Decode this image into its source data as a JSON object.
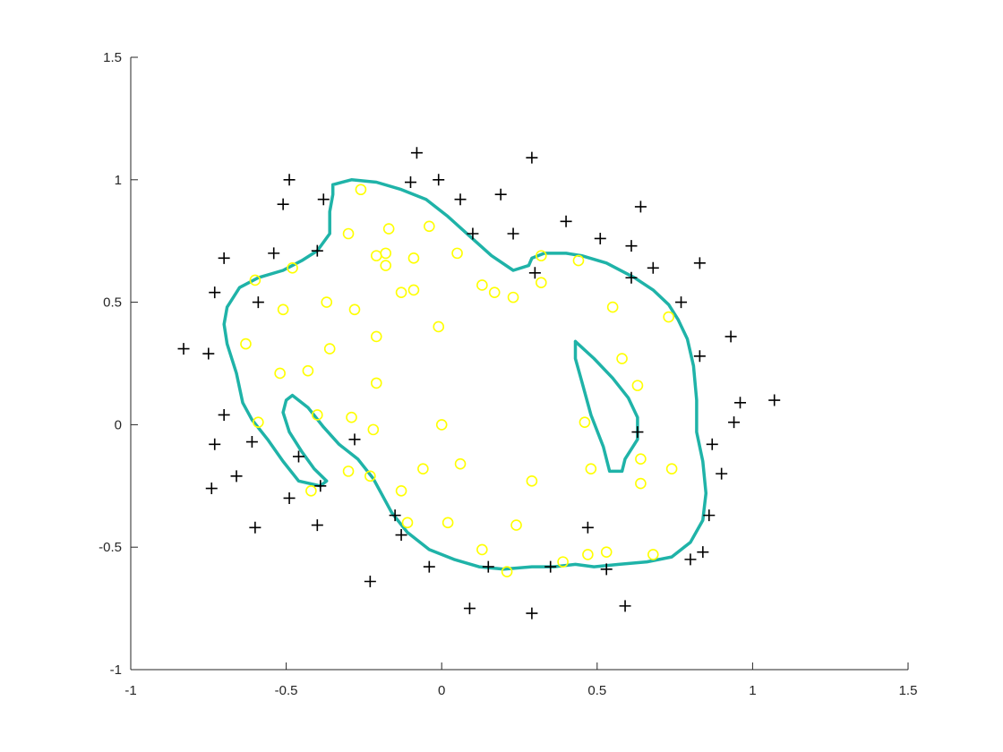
{
  "chart_data": {
    "type": "scatter",
    "xlim": [
      -1,
      1.5
    ],
    "ylim": [
      -1,
      1.5
    ],
    "x_ticks": [
      -1,
      -0.5,
      0,
      0.5,
      1,
      1.5
    ],
    "y_ticks": [
      -1,
      -0.5,
      0,
      0.5,
      1,
      1.5
    ],
    "x_tick_labels": [
      "-1",
      "-0.5",
      "0",
      "0.5",
      "1",
      "1.5"
    ],
    "y_tick_labels": [
      "-1",
      "-0.5",
      "0",
      "0.5",
      "1",
      "1.5"
    ],
    "grid": false,
    "box": false,
    "colors": {
      "positive": "#000000",
      "negative": "#ffff00",
      "boundary": "#1fb3a8",
      "axis": "#262626"
    },
    "series": [
      {
        "marker": "plus",
        "points": [
          [
            -0.83,
            0.31
          ],
          [
            -0.75,
            0.29
          ],
          [
            -0.73,
            0.54
          ],
          [
            -0.7,
            0.68
          ],
          [
            -0.7,
            0.04
          ],
          [
            -0.73,
            -0.08
          ],
          [
            -0.74,
            -0.26
          ],
          [
            -0.66,
            -0.21
          ],
          [
            -0.59,
            0.5
          ],
          [
            -0.61,
            -0.07
          ],
          [
            -0.6,
            -0.42
          ],
          [
            -0.54,
            0.7
          ],
          [
            -0.51,
            0.9
          ],
          [
            -0.49,
            1.0
          ],
          [
            -0.49,
            -0.3
          ],
          [
            -0.46,
            -0.13
          ],
          [
            -0.4,
            0.71
          ],
          [
            -0.38,
            0.92
          ],
          [
            -0.4,
            -0.41
          ],
          [
            -0.39,
            -0.25
          ],
          [
            -0.28,
            -0.06
          ],
          [
            -0.23,
            -0.64
          ],
          [
            -0.15,
            -0.37
          ],
          [
            -0.13,
            -0.45
          ],
          [
            -0.1,
            0.99
          ],
          [
            -0.08,
            1.11
          ],
          [
            -0.04,
            -0.58
          ],
          [
            -0.01,
            1.0
          ],
          [
            0.06,
            0.92
          ],
          [
            0.1,
            0.78
          ],
          [
            0.09,
            -0.75
          ],
          [
            0.15,
            -0.58
          ],
          [
            0.19,
            0.94
          ],
          [
            0.23,
            0.78
          ],
          [
            0.29,
            1.09
          ],
          [
            0.3,
            0.62
          ],
          [
            0.29,
            -0.77
          ],
          [
            0.35,
            -0.58
          ],
          [
            0.4,
            0.83
          ],
          [
            0.47,
            -0.42
          ],
          [
            0.51,
            0.76
          ],
          [
            0.53,
            -0.59
          ],
          [
            0.61,
            0.73
          ],
          [
            0.61,
            0.6
          ],
          [
            0.64,
            0.89
          ],
          [
            0.63,
            -0.03
          ],
          [
            0.59,
            -0.74
          ],
          [
            0.68,
            0.64
          ],
          [
            0.77,
            0.5
          ],
          [
            0.8,
            -0.55
          ],
          [
            0.83,
            0.66
          ],
          [
            0.83,
            0.28
          ],
          [
            0.84,
            -0.52
          ],
          [
            0.86,
            -0.37
          ],
          [
            0.87,
            -0.08
          ],
          [
            0.9,
            -0.2
          ],
          [
            0.93,
            0.36
          ],
          [
            0.94,
            0.01
          ],
          [
            0.96,
            0.09
          ],
          [
            1.07,
            0.1
          ]
        ]
      },
      {
        "marker": "circle",
        "points": [
          [
            -0.63,
            0.33
          ],
          [
            -0.6,
            0.59
          ],
          [
            -0.59,
            0.01
          ],
          [
            -0.52,
            0.21
          ],
          [
            -0.51,
            0.47
          ],
          [
            -0.48,
            0.64
          ],
          [
            -0.43,
            0.22
          ],
          [
            -0.42,
            -0.27
          ],
          [
            -0.4,
            0.04
          ],
          [
            -0.37,
            0.5
          ],
          [
            -0.36,
            0.31
          ],
          [
            -0.3,
            0.78
          ],
          [
            -0.29,
            0.03
          ],
          [
            -0.3,
            -0.19
          ],
          [
            -0.28,
            0.47
          ],
          [
            -0.26,
            0.96
          ],
          [
            -0.23,
            -0.21
          ],
          [
            -0.21,
            0.69
          ],
          [
            -0.21,
            0.36
          ],
          [
            -0.21,
            0.17
          ],
          [
            -0.22,
            -0.02
          ],
          [
            -0.17,
            0.8
          ],
          [
            -0.18,
            0.7
          ],
          [
            -0.18,
            0.65
          ],
          [
            -0.13,
            0.54
          ],
          [
            -0.13,
            -0.27
          ],
          [
            -0.11,
            -0.4
          ],
          [
            -0.09,
            0.68
          ],
          [
            -0.09,
            0.55
          ],
          [
            -0.06,
            -0.18
          ],
          [
            -0.04,
            0.81
          ],
          [
            -0.01,
            0.4
          ],
          [
            0.0,
            0.0
          ],
          [
            0.02,
            -0.4
          ],
          [
            0.05,
            0.7
          ],
          [
            0.06,
            -0.16
          ],
          [
            0.13,
            0.57
          ],
          [
            0.13,
            -0.51
          ],
          [
            0.17,
            0.54
          ],
          [
            0.21,
            -0.6
          ],
          [
            0.23,
            0.52
          ],
          [
            0.24,
            -0.41
          ],
          [
            0.29,
            -0.23
          ],
          [
            0.32,
            0.69
          ],
          [
            0.32,
            0.58
          ],
          [
            0.39,
            -0.56
          ],
          [
            0.44,
            0.67
          ],
          [
            0.46,
            0.01
          ],
          [
            0.48,
            -0.18
          ],
          [
            0.47,
            -0.53
          ],
          [
            0.53,
            -0.52
          ],
          [
            0.55,
            0.48
          ],
          [
            0.58,
            0.27
          ],
          [
            0.63,
            0.16
          ],
          [
            0.64,
            -0.14
          ],
          [
            0.64,
            -0.24
          ],
          [
            0.68,
            -0.53
          ],
          [
            0.73,
            0.44
          ],
          [
            0.74,
            -0.18
          ]
        ]
      }
    ],
    "decision_boundary": [
      [
        [
          -0.35,
          0.98
        ],
        [
          -0.29,
          1.0
        ],
        [
          -0.21,
          0.99
        ],
        [
          -0.13,
          0.96
        ],
        [
          -0.05,
          0.92
        ],
        [
          0.02,
          0.85
        ],
        [
          0.09,
          0.77
        ],
        [
          0.16,
          0.69
        ],
        [
          0.23,
          0.63
        ],
        [
          0.28,
          0.65
        ],
        [
          0.29,
          0.68
        ],
        [
          0.33,
          0.7
        ],
        [
          0.4,
          0.7
        ],
        [
          0.45,
          0.69
        ],
        [
          0.53,
          0.66
        ],
        [
          0.62,
          0.6
        ],
        [
          0.68,
          0.55
        ],
        [
          0.73,
          0.49
        ],
        [
          0.76,
          0.43
        ],
        [
          0.79,
          0.35
        ],
        [
          0.81,
          0.24
        ],
        [
          0.82,
          0.1
        ],
        [
          0.82,
          -0.03
        ],
        [
          0.84,
          -0.15
        ],
        [
          0.85,
          -0.28
        ],
        [
          0.84,
          -0.39
        ],
        [
          0.8,
          -0.48
        ],
        [
          0.74,
          -0.54
        ],
        [
          0.66,
          -0.56
        ],
        [
          0.57,
          -0.57
        ],
        [
          0.49,
          -0.58
        ],
        [
          0.43,
          -0.57
        ],
        [
          0.36,
          -0.58
        ],
        [
          0.29,
          -0.58
        ],
        [
          0.2,
          -0.59
        ],
        [
          0.12,
          -0.58
        ],
        [
          0.04,
          -0.55
        ],
        [
          -0.04,
          -0.51
        ],
        [
          -0.11,
          -0.44
        ],
        [
          -0.16,
          -0.36
        ],
        [
          -0.22,
          -0.22
        ],
        [
          -0.27,
          -0.14
        ],
        [
          -0.33,
          -0.08
        ],
        [
          -0.38,
          -0.01
        ],
        [
          -0.43,
          0.07
        ],
        [
          -0.48,
          0.12
        ],
        [
          -0.5,
          0.1
        ],
        [
          -0.51,
          0.05
        ],
        [
          -0.49,
          -0.03
        ],
        [
          -0.45,
          -0.11
        ],
        [
          -0.41,
          -0.18
        ],
        [
          -0.37,
          -0.23
        ],
        [
          -0.39,
          -0.25
        ],
        [
          -0.46,
          -0.23
        ],
        [
          -0.51,
          -0.15
        ],
        [
          -0.56,
          -0.06
        ],
        [
          -0.61,
          0.02
        ],
        [
          -0.64,
          0.09
        ],
        [
          -0.66,
          0.21
        ],
        [
          -0.69,
          0.33
        ],
        [
          -0.7,
          0.41
        ],
        [
          -0.69,
          0.48
        ],
        [
          -0.65,
          0.56
        ],
        [
          -0.59,
          0.6
        ],
        [
          -0.51,
          0.63
        ],
        [
          -0.45,
          0.67
        ],
        [
          -0.4,
          0.71
        ],
        [
          -0.36,
          0.78
        ],
        [
          -0.36,
          0.87
        ],
        [
          -0.35,
          0.94
        ],
        [
          -0.35,
          0.98
        ]
      ],
      [
        [
          0.43,
          0.34
        ],
        [
          0.49,
          0.27
        ],
        [
          0.55,
          0.19
        ],
        [
          0.6,
          0.11
        ],
        [
          0.63,
          0.03
        ],
        [
          0.63,
          -0.06
        ],
        [
          0.59,
          -0.14
        ],
        [
          0.58,
          -0.19
        ],
        [
          0.54,
          -0.19
        ],
        [
          0.52,
          -0.09
        ],
        [
          0.48,
          0.04
        ],
        [
          0.45,
          0.18
        ],
        [
          0.43,
          0.27
        ],
        [
          0.43,
          0.34
        ]
      ]
    ]
  }
}
